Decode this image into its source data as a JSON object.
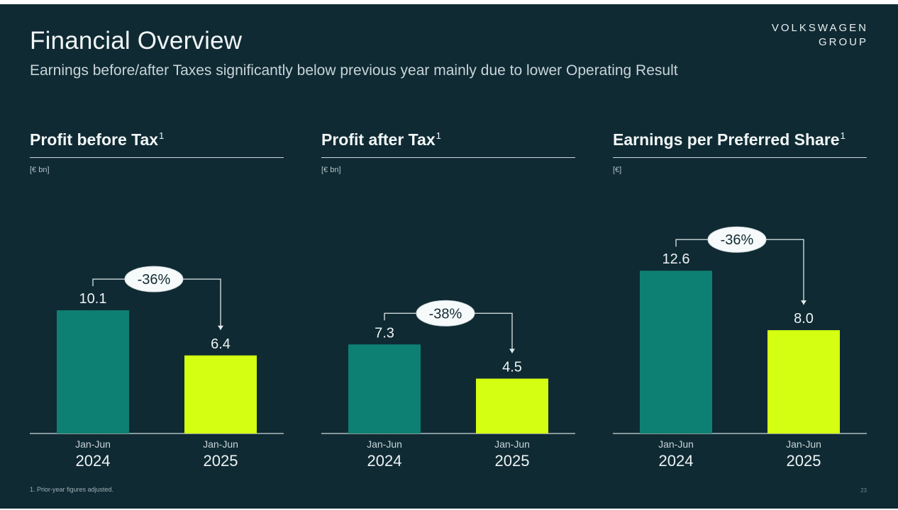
{
  "header": {
    "title": "Financial Overview",
    "subtitle": "Earnings before/after Taxes significantly below previous year mainly due to lower Operating Result",
    "logo_line1": "VOLKSWAGEN",
    "logo_line2": "GROUP"
  },
  "colors": {
    "background": "#0f2a33",
    "bar_2024": "#0e8073",
    "bar_2025": "#d4ff12",
    "text": "#e8eef0"
  },
  "chart_data": [
    {
      "type": "bar",
      "title": "Profit before Tax",
      "footnote_ref": "1",
      "unit": "[€ bn]",
      "categories": [
        {
          "period": "Jan-Jun",
          "year": "2024"
        },
        {
          "period": "Jan-Jun",
          "year": "2025"
        }
      ],
      "values": [
        10.1,
        6.4
      ],
      "value_labels": [
        "10.1",
        "6.4"
      ],
      "change_label": "-36%",
      "ylim": [
        0,
        18
      ]
    },
    {
      "type": "bar",
      "title": "Profit after Tax",
      "footnote_ref": "1",
      "unit": "[€ bn]",
      "categories": [
        {
          "period": "Jan-Jun",
          "year": "2024"
        },
        {
          "period": "Jan-Jun",
          "year": "2025"
        }
      ],
      "values": [
        7.3,
        4.5
      ],
      "value_labels": [
        "7.3",
        "4.5"
      ],
      "change_label": "-38%",
      "ylim": [
        0,
        18
      ]
    },
    {
      "type": "bar",
      "title": "Earnings per Preferred Share",
      "footnote_ref": "1",
      "unit": "[€]",
      "categories": [
        {
          "period": "Jan-Jun",
          "year": "2024"
        },
        {
          "period": "Jan-Jun",
          "year": "2025"
        }
      ],
      "values": [
        12.6,
        8.0
      ],
      "value_labels": [
        "12.6",
        "8.0"
      ],
      "change_label": "-36%",
      "ylim": [
        0,
        17
      ]
    }
  ],
  "footer": {
    "footnote": "1. Prior-year figures adjusted.",
    "page_number": "23"
  }
}
